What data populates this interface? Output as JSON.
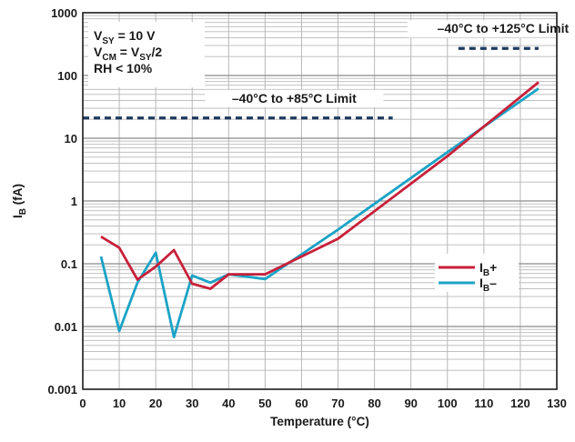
{
  "chart_data": {
    "type": "line",
    "xlabel": "Temperature (°C)",
    "ylabel_main": "I",
    "ylabel_sub": "B",
    "ylabel_unit": " (fA)",
    "x_ticks": [
      0,
      10,
      20,
      30,
      40,
      50,
      60,
      70,
      80,
      90,
      100,
      110,
      120,
      130
    ],
    "y_ticks": [
      {
        "value": 0.001,
        "label": "0.001"
      },
      {
        "value": 0.01,
        "label": "0.01"
      },
      {
        "value": 0.1,
        "label": "0.1"
      },
      {
        "value": 1,
        "label": "1"
      },
      {
        "value": 10,
        "label": "10"
      },
      {
        "value": 100,
        "label": "100"
      },
      {
        "value": 1000,
        "label": "1000"
      }
    ],
    "xlim": [
      0,
      130
    ],
    "ylim": [
      0.001,
      1000
    ],
    "y_scale": "log",
    "grid": true,
    "legend_position": "right-middle",
    "series": [
      {
        "name_main": "I",
        "name_sub": "B",
        "name_suffix": "+",
        "color": "#c8203a",
        "x": [
          5,
          10,
          15,
          20,
          25,
          30,
          35,
          40,
          50,
          70,
          100,
          125
        ],
        "y": [
          0.27,
          0.18,
          0.056,
          0.09,
          0.165,
          0.048,
          0.04,
          0.068,
          0.068,
          0.25,
          5.2,
          78
        ]
      },
      {
        "name_main": "I",
        "name_sub": "B",
        "name_suffix": "–",
        "color": "#1ba3c6",
        "x": [
          5,
          10,
          15,
          20,
          25,
          30,
          35,
          40,
          50,
          70,
          100,
          125
        ],
        "y": [
          0.13,
          0.0085,
          0.05,
          0.15,
          0.0068,
          0.065,
          0.05,
          0.068,
          0.057,
          0.35,
          6.0,
          62
        ]
      }
    ],
    "limit_lines": [
      {
        "label": "–40°C to +125°C Limit",
        "y": 270,
        "x_start": 103,
        "x_end": 125
      },
      {
        "label": "–40°C to +85°C Limit",
        "y": 21,
        "x_start": 0,
        "x_end": 85
      }
    ],
    "conditions": [
      {
        "main": "V",
        "sub": "SY",
        "rest": " = 10 V"
      },
      {
        "main": "V",
        "sub": "CM",
        "rest": " = V",
        "sub2": "SY",
        "rest2": "/2"
      },
      {
        "main": "RH < 10%"
      }
    ],
    "colors": {
      "line_limit": "#1e3a5f",
      "grid": "#b8b8b8",
      "axis": "#1a1a1a"
    }
  }
}
